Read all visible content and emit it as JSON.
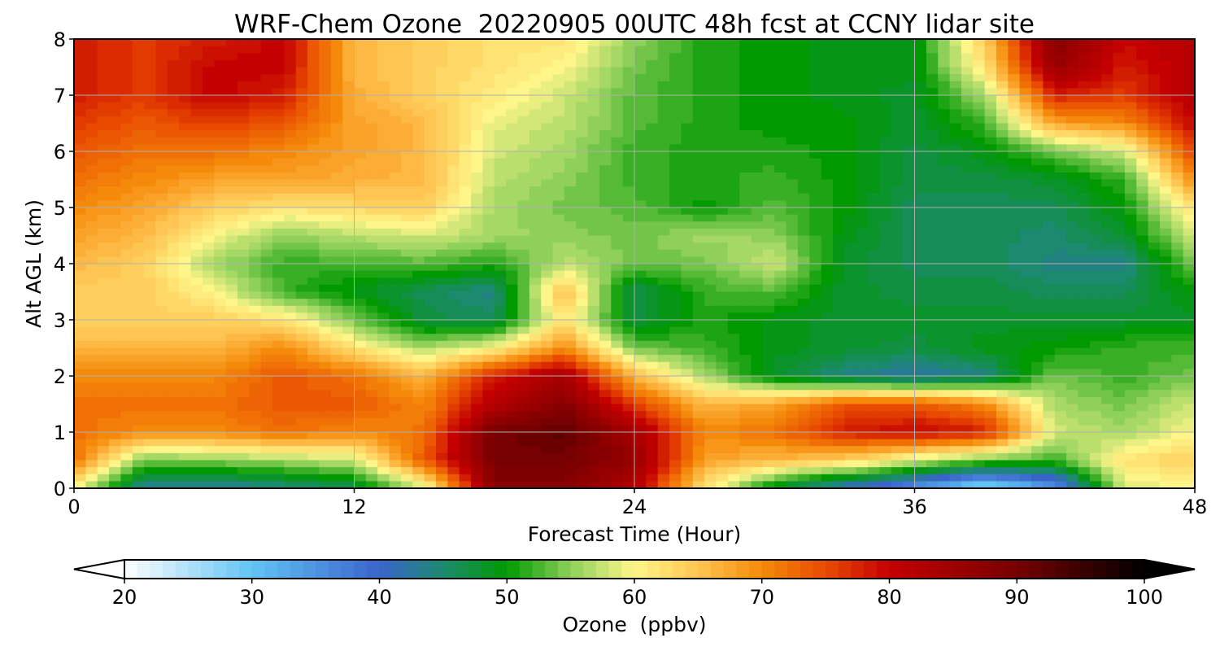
{
  "chart_data": {
    "type": "heatmap",
    "title": "WRF-Chem Ozone  20220905 00UTC 48h fcst at CCNY lidar site",
    "xlabel": "Forecast Time (Hour)",
    "ylabel": "Alt AGL (km)",
    "xlim": [
      0,
      48
    ],
    "ylim": [
      0,
      8
    ],
    "x_ticks": [
      0,
      12,
      24,
      36,
      48
    ],
    "y_ticks": [
      0,
      1,
      2,
      3,
      4,
      5,
      6,
      7,
      8
    ],
    "grid": true,
    "colorbar": {
      "label": "Ozone  (ppbv)",
      "min": 20,
      "max": 100,
      "ticks": [
        20,
        30,
        40,
        50,
        60,
        70,
        80,
        90,
        100
      ],
      "extend": "both",
      "colors": [
        {
          "v": 20,
          "c": "#ffffff"
        },
        {
          "v": 30,
          "c": "#62c3f4"
        },
        {
          "v": 40,
          "c": "#3a64cc"
        },
        {
          "v": 45,
          "c": "#1c8a6e"
        },
        {
          "v": 50,
          "c": "#009900"
        },
        {
          "v": 55,
          "c": "#8ed05a"
        },
        {
          "v": 60,
          "c": "#fff68a"
        },
        {
          "v": 65,
          "c": "#ffc552"
        },
        {
          "v": 70,
          "c": "#f58a0a"
        },
        {
          "v": 75,
          "c": "#e84a00"
        },
        {
          "v": 80,
          "c": "#c40000"
        },
        {
          "v": 90,
          "c": "#770000"
        },
        {
          "v": 100,
          "c": "#000000"
        }
      ]
    },
    "x": [
      0,
      3,
      6,
      9,
      12,
      15,
      18,
      21,
      24,
      27,
      30,
      33,
      36,
      39,
      42,
      45,
      48
    ],
    "y": [
      0,
      0.5,
      1,
      1.5,
      2,
      2.5,
      3,
      3.5,
      4,
      4.5,
      5,
      5.5,
      6,
      6.5,
      7,
      7.5,
      8
    ],
    "z": [
      [
        60,
        42,
        42,
        44,
        46,
        58,
        88,
        88,
        82,
        62,
        48,
        40,
        34,
        26,
        34,
        58,
        60
      ],
      [
        72,
        54,
        55,
        56,
        58,
        74,
        90,
        90,
        86,
        68,
        66,
        64,
        58,
        54,
        52,
        62,
        64
      ],
      [
        72,
        70,
        70,
        72,
        70,
        72,
        90,
        92,
        84,
        70,
        72,
        78,
        80,
        78,
        58,
        56,
        60
      ],
      [
        72,
        72,
        72,
        74,
        74,
        70,
        82,
        88,
        76,
        66,
        68,
        74,
        74,
        70,
        56,
        54,
        58
      ],
      [
        70,
        70,
        70,
        74,
        72,
        66,
        78,
        84,
        66,
        56,
        48,
        44,
        42,
        44,
        54,
        52,
        54
      ],
      [
        66,
        66,
        66,
        70,
        62,
        56,
        60,
        70,
        54,
        52,
        49,
        48,
        47,
        49,
        50,
        52,
        52
      ],
      [
        64,
        64,
        64,
        62,
        54,
        47,
        46,
        62,
        47,
        51,
        49,
        48,
        48,
        48,
        48,
        48,
        48
      ],
      [
        64,
        64,
        60,
        52,
        49,
        46,
        44,
        66,
        46,
        52,
        53,
        48,
        47,
        47,
        46,
        46,
        50
      ],
      [
        66,
        64,
        56,
        52,
        52,
        53,
        51,
        57,
        54,
        54,
        58,
        48,
        46,
        46,
        44,
        44,
        54
      ],
      [
        68,
        66,
        60,
        55,
        57,
        58,
        56,
        55,
        54,
        56,
        55,
        49,
        46,
        46,
        45,
        48,
        58
      ],
      [
        70,
        68,
        64,
        62,
        63,
        64,
        56,
        54,
        53,
        50,
        53,
        50,
        46,
        46,
        46,
        50,
        62
      ],
      [
        72,
        70,
        68,
        68,
        67,
        66,
        57,
        55,
        52,
        51,
        52,
        50,
        47,
        47,
        48,
        52,
        70
      ],
      [
        74,
        72,
        72,
        70,
        68,
        66,
        58,
        56,
        52,
        51,
        51,
        50,
        47,
        49,
        54,
        58,
        76
      ],
      [
        76,
        74,
        76,
        74,
        68,
        66,
        59,
        57,
        53,
        51,
        50,
        50,
        48,
        52,
        68,
        70,
        80
      ],
      [
        78,
        76,
        80,
        78,
        67,
        64,
        61,
        58,
        53,
        51,
        50,
        49,
        48,
        56,
        78,
        76,
        82
      ],
      [
        78,
        76,
        80,
        80,
        66,
        64,
        62,
        60,
        54,
        51,
        50,
        49,
        49,
        62,
        86,
        78,
        82
      ],
      [
        78,
        76,
        78,
        80,
        66,
        64,
        62,
        62,
        55,
        51,
        50,
        49,
        49,
        64,
        88,
        80,
        82
      ]
    ]
  }
}
